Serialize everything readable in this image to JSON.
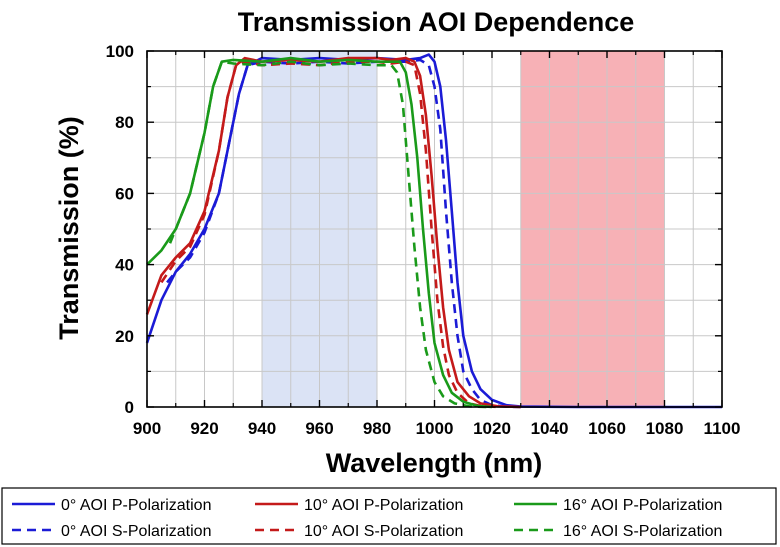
{
  "chart_data": {
    "type": "line",
    "title": "Transmission AOI Dependence",
    "xlabel": "Wavelength (nm)",
    "ylabel": "Transmission (%)",
    "xlim": [
      900,
      1100
    ],
    "ylim": [
      0,
      100
    ],
    "x_ticks": [
      "900",
      "920",
      "940",
      "960",
      "980",
      "1000",
      "1020",
      "1040",
      "1060",
      "1080",
      "1100"
    ],
    "y_ticks": [
      "0",
      "20",
      "40",
      "60",
      "80",
      "100"
    ],
    "grid": true,
    "legend_position": "bottom",
    "shaded_regions": [
      {
        "x_start": 940,
        "x_end": 980,
        "color": "#dbe3f5"
      },
      {
        "x_start": 1030,
        "x_end": 1080,
        "color": "#f7b1b6"
      }
    ],
    "series": [
      {
        "name": "0° AOI P-Polarization",
        "color": "#1b1bd6",
        "dash": "solid",
        "points": [
          [
            900,
            18
          ],
          [
            905,
            30
          ],
          [
            910,
            38
          ],
          [
            915,
            43
          ],
          [
            920,
            50
          ],
          [
            925,
            60
          ],
          [
            928,
            72
          ],
          [
            932,
            88
          ],
          [
            935,
            96
          ],
          [
            940,
            98
          ],
          [
            950,
            97.5
          ],
          [
            960,
            98
          ],
          [
            970,
            97.5
          ],
          [
            980,
            98
          ],
          [
            990,
            97.5
          ],
          [
            995,
            98
          ],
          [
            998,
            99
          ],
          [
            1000,
            97
          ],
          [
            1002,
            90
          ],
          [
            1004,
            75
          ],
          [
            1006,
            55
          ],
          [
            1008,
            35
          ],
          [
            1010,
            20
          ],
          [
            1013,
            10
          ],
          [
            1016,
            5
          ],
          [
            1020,
            2
          ],
          [
            1025,
            0.5
          ],
          [
            1030,
            0.1
          ],
          [
            1050,
            0
          ],
          [
            1100,
            0
          ]
        ]
      },
      {
        "name": "0° AOI S-Polarization",
        "color": "#1b1bd6",
        "dash": "dashed",
        "points": [
          [
            907,
            35
          ],
          [
            910,
            38
          ],
          [
            915,
            42
          ],
          [
            920,
            49
          ],
          [
            925,
            60
          ],
          [
            928,
            72
          ],
          [
            932,
            88
          ],
          [
            935,
            96
          ],
          [
            940,
            97
          ],
          [
            950,
            96.5
          ],
          [
            960,
            97
          ],
          [
            970,
            96.5
          ],
          [
            980,
            97
          ],
          [
            990,
            97
          ],
          [
            995,
            97.5
          ],
          [
            998,
            96
          ],
          [
            1000,
            90
          ],
          [
            1002,
            78
          ],
          [
            1004,
            55
          ],
          [
            1006,
            35
          ],
          [
            1008,
            20
          ],
          [
            1010,
            10
          ],
          [
            1013,
            5
          ],
          [
            1016,
            2
          ],
          [
            1020,
            0.5
          ],
          [
            1025,
            0.1
          ],
          [
            1030,
            0
          ]
        ]
      },
      {
        "name": "10° AOI P-Polarization",
        "color": "#c41a1a",
        "dash": "solid",
        "points": [
          [
            900,
            26
          ],
          [
            905,
            37
          ],
          [
            910,
            42
          ],
          [
            915,
            46
          ],
          [
            920,
            55
          ],
          [
            925,
            72
          ],
          [
            928,
            87
          ],
          [
            931,
            96
          ],
          [
            934,
            98
          ],
          [
            940,
            97
          ],
          [
            950,
            97.5
          ],
          [
            960,
            97
          ],
          [
            970,
            98
          ],
          [
            980,
            98
          ],
          [
            985,
            97.5
          ],
          [
            990,
            98
          ],
          [
            993,
            97
          ],
          [
            995,
            93
          ],
          [
            997,
            82
          ],
          [
            999,
            65
          ],
          [
            1001,
            45
          ],
          [
            1003,
            28
          ],
          [
            1005,
            16
          ],
          [
            1008,
            7
          ],
          [
            1012,
            3
          ],
          [
            1016,
            1
          ],
          [
            1022,
            0.2
          ],
          [
            1030,
            0
          ]
        ]
      },
      {
        "name": "10° AOI S-Polarization",
        "color": "#c41a1a",
        "dash": "dashed",
        "points": [
          [
            905,
            35
          ],
          [
            910,
            41
          ],
          [
            915,
            45
          ],
          [
            920,
            54
          ],
          [
            925,
            72
          ],
          [
            928,
            87
          ],
          [
            931,
            96
          ],
          [
            934,
            97
          ],
          [
            940,
            96
          ],
          [
            950,
            96.5
          ],
          [
            960,
            96
          ],
          [
            970,
            97
          ],
          [
            980,
            97
          ],
          [
            985,
            96.5
          ],
          [
            990,
            97
          ],
          [
            993,
            96
          ],
          [
            995,
            88
          ],
          [
            997,
            72
          ],
          [
            999,
            50
          ],
          [
            1001,
            30
          ],
          [
            1003,
            17
          ],
          [
            1005,
            9
          ],
          [
            1008,
            4
          ],
          [
            1012,
            1
          ],
          [
            1016,
            0.3
          ],
          [
            1022,
            0
          ]
        ]
      },
      {
        "name": "16° AOI P-Polarization",
        "color": "#1a9a1a",
        "dash": "solid",
        "points": [
          [
            900,
            40
          ],
          [
            905,
            44
          ],
          [
            910,
            50
          ],
          [
            915,
            60
          ],
          [
            920,
            77
          ],
          [
            923,
            90
          ],
          [
            926,
            97
          ],
          [
            930,
            97.5
          ],
          [
            940,
            97
          ],
          [
            950,
            98
          ],
          [
            960,
            97
          ],
          [
            970,
            97.5
          ],
          [
            980,
            97
          ],
          [
            985,
            97
          ],
          [
            988,
            97
          ],
          [
            990,
            94
          ],
          [
            992,
            85
          ],
          [
            994,
            70
          ],
          [
            996,
            50
          ],
          [
            998,
            32
          ],
          [
            1000,
            18
          ],
          [
            1003,
            9
          ],
          [
            1006,
            4
          ],
          [
            1010,
            1.5
          ],
          [
            1015,
            0.3
          ],
          [
            1020,
            0
          ]
        ]
      },
      {
        "name": "16° AOI S-Polarization",
        "color": "#1a9a1a",
        "dash": "dashed",
        "points": [
          [
            908,
            46
          ],
          [
            910,
            50
          ],
          [
            915,
            60
          ],
          [
            920,
            77
          ],
          [
            923,
            90
          ],
          [
            926,
            97
          ],
          [
            930,
            96.5
          ],
          [
            940,
            96
          ],
          [
            950,
            97
          ],
          [
            960,
            96
          ],
          [
            970,
            96.5
          ],
          [
            980,
            96
          ],
          [
            985,
            96
          ],
          [
            987,
            94
          ],
          [
            989,
            85
          ],
          [
            991,
            65
          ],
          [
            993,
            45
          ],
          [
            995,
            28
          ],
          [
            997,
            16
          ],
          [
            1000,
            7
          ],
          [
            1003,
            3
          ],
          [
            1007,
            1
          ],
          [
            1012,
            0.2
          ],
          [
            1018,
            0
          ]
        ]
      }
    ]
  }
}
